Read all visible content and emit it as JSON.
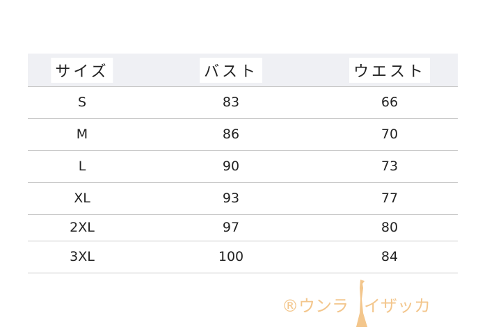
{
  "headers": [
    "サイズ",
    "バスト",
    "ウエスト"
  ],
  "rows": [
    [
      "S",
      "83",
      "66"
    ],
    [
      "M",
      "86",
      "70"
    ],
    [
      "L",
      "90",
      "73"
    ],
    [
      "XL",
      "93",
      "77"
    ],
    [
      "2XL",
      "97",
      "80"
    ],
    [
      "3XL",
      "100",
      "84"
    ]
  ],
  "watermark": {
    "left": "®ウンラ",
    "right": "イザッカ",
    "color": "#f3c68c"
  }
}
